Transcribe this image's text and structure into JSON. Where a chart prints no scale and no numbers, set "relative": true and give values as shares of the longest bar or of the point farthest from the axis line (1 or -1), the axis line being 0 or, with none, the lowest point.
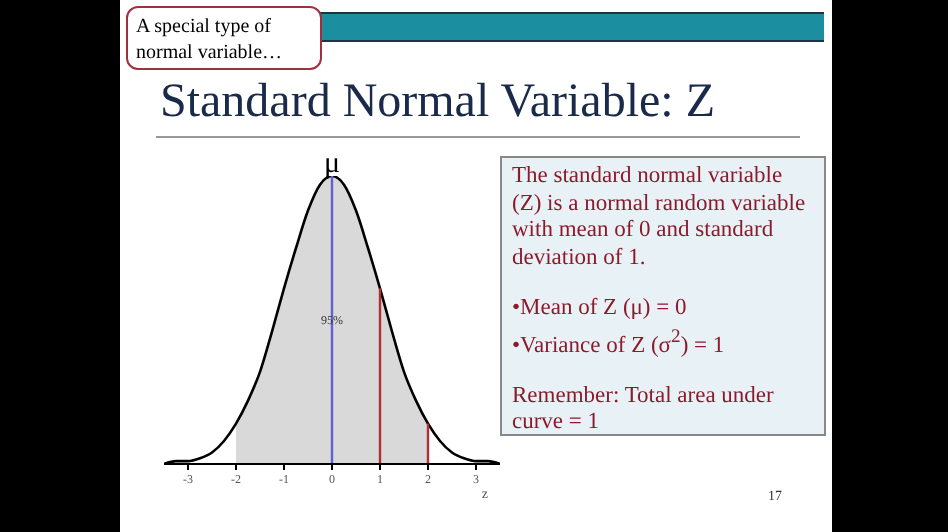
{
  "chart_data": {
    "type": "line",
    "relative": true,
    "title": "Standard Normal Variable: Z",
    "xlabel": "z",
    "xlim": [
      -3.5,
      3.5
    ],
    "xticks": [
      -3,
      -2,
      -1,
      0,
      1,
      2,
      3
    ],
    "tick_labels": "x",
    "marker": "none",
    "line_style": "solid",
    "series": [
      {
        "type": "area",
        "color": "#d9d9d9",
        "x": [
          -2,
          -1.75,
          -1.5,
          -1.25,
          -1,
          -0.75,
          -0.5,
          -0.25,
          0,
          0.25,
          0.5,
          0.75,
          1,
          1.25,
          1.5,
          1.75,
          2
        ],
        "values": [
          0.14,
          0.22,
          0.32,
          0.46,
          0.61,
          0.75,
          0.88,
          0.97,
          1,
          0.97,
          0.88,
          0.75,
          0.61,
          0.46,
          0.32,
          0.22,
          0.14
        ]
      },
      {
        "color": "#000000",
        "x": [
          -3.5,
          -3.25,
          -3,
          -2.75,
          -2.5,
          -2.25,
          -2,
          -1.75,
          -1.5,
          -1.25,
          -1,
          -0.75,
          -0.5,
          -0.25,
          0,
          0.25,
          0.5,
          0.75,
          1,
          1.25,
          1.5,
          1.75,
          2,
          2.25,
          2.5,
          2.75,
          3,
          3.25,
          3.5
        ],
        "values": [
          0,
          0.01,
          0.01,
          0.02,
          0.04,
          0.08,
          0.14,
          0.22,
          0.32,
          0.46,
          0.61,
          0.75,
          0.88,
          0.97,
          1,
          0.97,
          0.88,
          0.75,
          0.61,
          0.46,
          0.32,
          0.22,
          0.14,
          0.08,
          0.04,
          0.02,
          0.01,
          0.01,
          0
        ]
      }
    ],
    "ref_lines": [
      {
        "axis": "x",
        "value": 0,
        "label": "μ",
        "color": "#6060d0"
      },
      {
        "axis": "x",
        "value": 1,
        "color": "#b03030"
      },
      {
        "axis": "x",
        "value": 2,
        "color": "#b03030"
      }
    ],
    "annotations": [
      {
        "text": "95%",
        "x": 0,
        "y": 0.5
      },
      "A special type of normal variable…",
      "The standard normal variable (Z) is a normal random variable with mean of 0 and standard deviation of 1.",
      "•Mean of Z (μ) = 0",
      "•Variance of Z (σ$^{2}$) = 1",
      "Remember: Total area under curve = 1",
      "17"
    ]
  }
}
